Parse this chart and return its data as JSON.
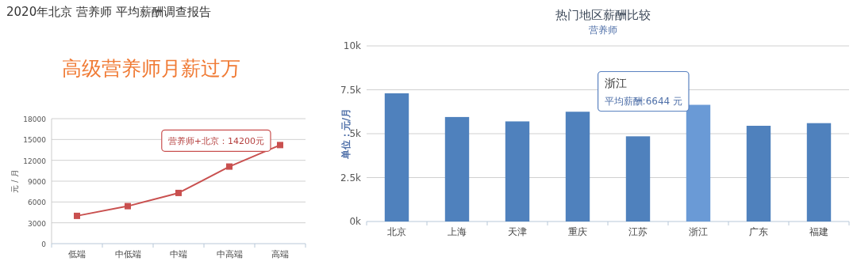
{
  "chart_data": [
    {
      "type": "line",
      "title": "2020年北京 营养师 平均薪酬调查报告",
      "subtitle": "高级营养师月薪过万",
      "ylabel": "元 / 月",
      "categories": [
        "低端",
        "中低端",
        "中端",
        "中高端",
        "高端"
      ],
      "values": [
        4000,
        5400,
        7300,
        11100,
        14200
      ],
      "color": "#c9504f",
      "marker": "square",
      "ylim": [
        0,
        18000
      ],
      "yticks": [
        0,
        3000,
        6000,
        9000,
        12000,
        15000,
        18000
      ],
      "grid": "y",
      "annotations": [
        {
          "text": "营养师+北京：14200元",
          "x": "高端",
          "y": 14200
        }
      ]
    },
    {
      "type": "bar",
      "title": "热门地区薪酬比较",
      "subtitle": "营养师",
      "ylabel": "单位：元/月",
      "categories": [
        "北京",
        "上海",
        "天津",
        "重庆",
        "江苏",
        "浙江",
        "广东",
        "福建"
      ],
      "values": [
        7300,
        5950,
        5700,
        6250,
        4850,
        6644,
        5450,
        5600
      ],
      "colors": [
        "#4f81bd",
        "#4f81bd",
        "#4f81bd",
        "#4f81bd",
        "#4f81bd",
        "#6a9ad6",
        "#4f81bd",
        "#4f81bd"
      ],
      "ylim": [
        0,
        10000
      ],
      "yticks": [
        {
          "value": 0,
          "label": "0k"
        },
        {
          "value": 2500,
          "label": "2.5k"
        },
        {
          "value": 5000,
          "label": "5k"
        },
        {
          "value": 7500,
          "label": "7.5k"
        },
        {
          "value": 10000,
          "label": "10k"
        }
      ],
      "grid": "y",
      "annotations": [
        "浙江",
        {
          "text": "平均薪酬:6644 元",
          "x": "浙江",
          "y": 6644
        }
      ]
    }
  ]
}
